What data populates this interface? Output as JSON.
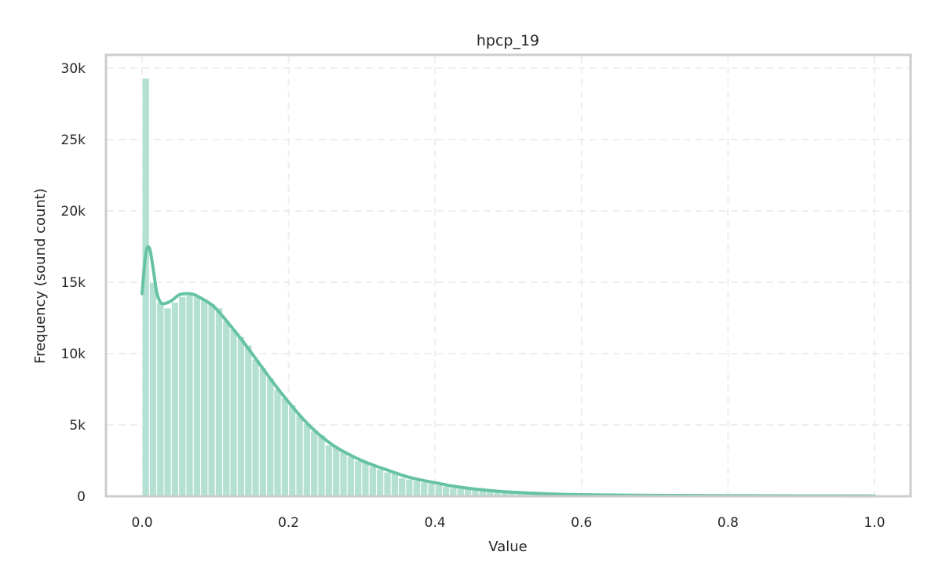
{
  "chart_data": {
    "type": "bar",
    "subtype": "histogram_with_kde",
    "title": "hpcp_19",
    "xlabel": "Value",
    "ylabel": "Frequency (sound count)",
    "xlim": [
      -0.05,
      1.05
    ],
    "ylim": [
      0,
      31000
    ],
    "xticks": [
      0.0,
      0.2,
      0.4,
      0.6,
      0.8,
      1.0
    ],
    "xtick_labels": [
      "0.0",
      "0.2",
      "0.4",
      "0.6",
      "0.8",
      "1.0"
    ],
    "yticks": [
      0,
      5000,
      10000,
      15000,
      20000,
      25000,
      30000
    ],
    "ytick_labels": [
      "0",
      "5k",
      "10k",
      "15k",
      "20k",
      "25k",
      "30k"
    ],
    "grid": true,
    "legend": null,
    "bin_width": 0.01,
    "bin_start": 0.0,
    "bar_color": "#66c2a5",
    "bar_alpha": 0.5,
    "kde_color": "#66c2a5",
    "values": [
      29300,
      15000,
      13600,
      13200,
      13600,
      14000,
      14100,
      14000,
      13800,
      13500,
      13200,
      12300,
      11700,
      11200,
      10600,
      9600,
      9000,
      8300,
      7500,
      6900,
      6400,
      5700,
      5100,
      4600,
      4300,
      3600,
      3500,
      3200,
      2800,
      2500,
      2400,
      2100,
      1900,
      1700,
      1700,
      1300,
      1200,
      1100,
      1000,
      900,
      800,
      700,
      600,
      550,
      500,
      450,
      400,
      350,
      300,
      250,
      220,
      190,
      170,
      150,
      130,
      115,
      100,
      90,
      80,
      75,
      70,
      65,
      60,
      55,
      52,
      50,
      48,
      46,
      44,
      42,
      40,
      38,
      36,
      35,
      34,
      33,
      32,
      31,
      30,
      29,
      28,
      27,
      26,
      25,
      24,
      23,
      22,
      21,
      20,
      20,
      19,
      19,
      18,
      18,
      17,
      17,
      16,
      16,
      16,
      60
    ],
    "kde": {
      "x": [
        0.0,
        0.005,
        0.01,
        0.015,
        0.02,
        0.025,
        0.03,
        0.04,
        0.05,
        0.06,
        0.07,
        0.08,
        0.09,
        0.1,
        0.12,
        0.14,
        0.16,
        0.18,
        0.2,
        0.22,
        0.24,
        0.26,
        0.28,
        0.3,
        0.32,
        0.34,
        0.36,
        0.38,
        0.4,
        0.42,
        0.44,
        0.46,
        0.48,
        0.5,
        0.55,
        0.6,
        0.7,
        0.8,
        0.9,
        1.0
      ],
      "y": [
        14200,
        17000,
        17400,
        16000,
        14300,
        13600,
        13500,
        13700,
        14100,
        14200,
        14150,
        13900,
        13600,
        13200,
        12000,
        10700,
        9300,
        7900,
        6600,
        5400,
        4400,
        3600,
        3000,
        2500,
        2100,
        1750,
        1400,
        1150,
        950,
        750,
        600,
        480,
        380,
        300,
        180,
        110,
        60,
        40,
        30,
        20
      ]
    }
  },
  "figure": {
    "title": "hpcp_19",
    "xlabel": "Value",
    "ylabel": "Frequency (sound count)"
  }
}
